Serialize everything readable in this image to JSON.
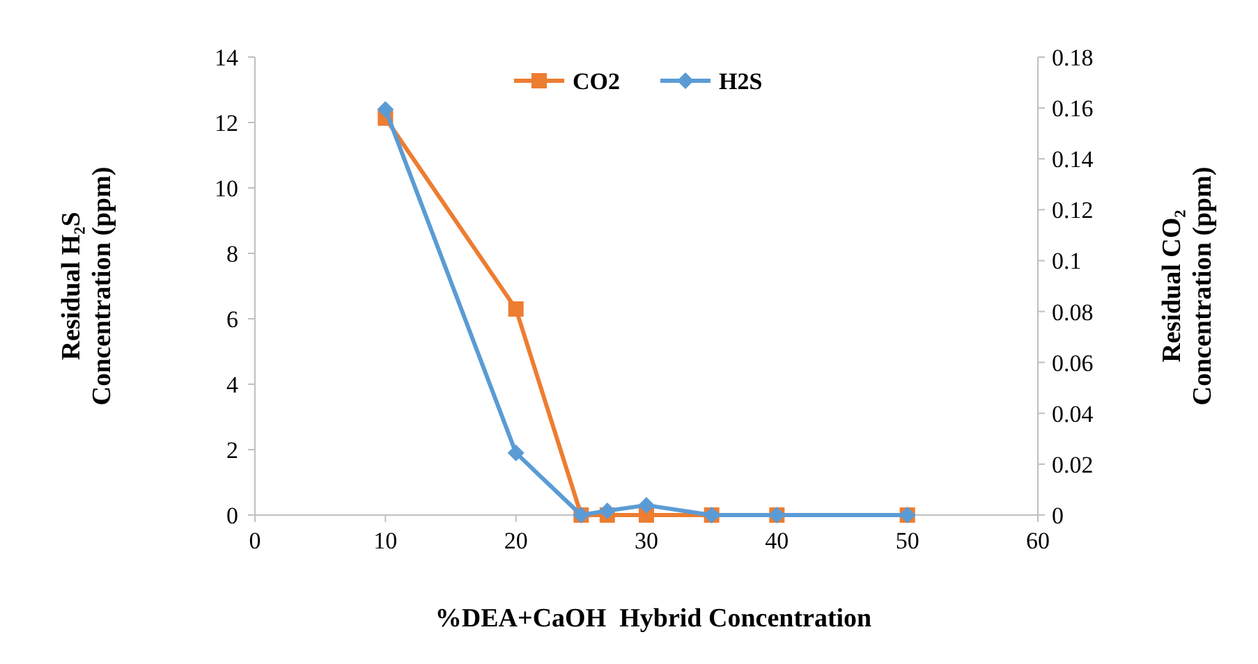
{
  "chart_data": {
    "type": "line",
    "xlabel": "%DEA+CaOH  Hybrid Concentration",
    "ylabel": "Residual H₂S\nConcentration (ppm)",
    "y2label": "Residual CO₂\nConcentration (ppm)",
    "xlim": [
      0,
      60
    ],
    "xticks": [
      0,
      10,
      20,
      30,
      40,
      50,
      60
    ],
    "ylim": [
      0,
      14
    ],
    "yticks": [
      0,
      2,
      4,
      6,
      8,
      10,
      12,
      14
    ],
    "y2lim": [
      0,
      0.18
    ],
    "y2ticks": [
      0,
      0.02,
      0.04,
      0.06,
      0.08,
      0.1,
      0.12,
      0.14,
      0.16,
      0.18
    ],
    "grid": false,
    "legend": "top",
    "x": [
      10,
      20,
      25,
      27,
      30,
      35,
      40,
      50
    ],
    "series": [
      {
        "name": "CO2",
        "color": "#ed7d31",
        "axis": "y2",
        "marker": "square",
        "values": [
          0.156,
          0.081,
          0,
          0,
          0,
          0,
          0,
          0
        ]
      },
      {
        "name": "H2S",
        "color": "#5b9bd5",
        "marker": "diamond",
        "values": [
          12.4,
          1.9,
          0,
          0.13,
          0.3,
          0,
          0,
          0
        ]
      }
    ]
  }
}
